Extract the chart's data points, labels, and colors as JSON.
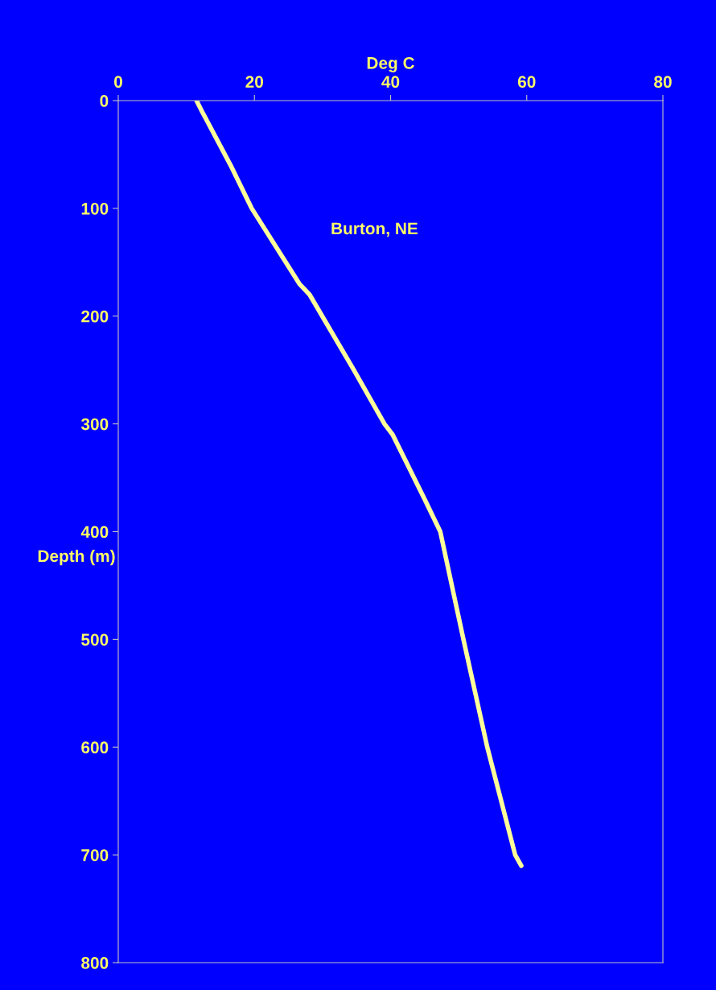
{
  "chart_data": {
    "type": "line",
    "xlabel": "Deg C",
    "ylabel": "Depth (m)",
    "annotations": [
      "Burton, NE"
    ],
    "x": [
      11.5,
      12.3,
      16.5,
      19.6,
      26.6,
      28.1,
      34.6,
      39.1,
      40.3,
      45.0,
      47.3,
      50.7,
      54.2,
      58.3,
      59.2
    ],
    "series": [
      {
        "color": "#ffff99",
        "values": [
          0,
          10,
          60,
          100,
          170,
          180,
          250,
          300,
          310,
          370,
          400,
          500,
          600,
          700,
          710
        ]
      }
    ],
    "xlim": [
      0,
      80
    ],
    "xticks": [
      0,
      20,
      40,
      60,
      80
    ],
    "ylim": [
      800,
      0
    ],
    "yticks": [
      0,
      100,
      200,
      300,
      400,
      500,
      600,
      700,
      800
    ],
    "grid": false,
    "legend": false,
    "marker": "none",
    "line_style": "solid"
  }
}
